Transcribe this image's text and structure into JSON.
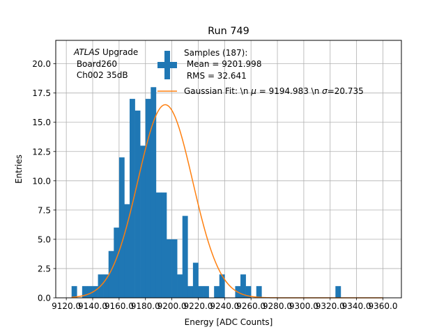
{
  "chart_data": {
    "type": "bar",
    "title": "Run 749",
    "xlabel": "Energy [ADC Counts]",
    "ylabel": "Entries",
    "xlim": [
      9112.0,
      9374.0
    ],
    "ylim": [
      0,
      22.0
    ],
    "grid": true,
    "x_ticks": [
      {
        "value": 9120,
        "label": "9120.0"
      },
      {
        "value": 9140,
        "label": "9140.0"
      },
      {
        "value": 9160,
        "label": "9160.0"
      },
      {
        "value": 9180,
        "label": "9180.0"
      },
      {
        "value": 9200,
        "label": "9200.0"
      },
      {
        "value": 9220,
        "label": "9220.0"
      },
      {
        "value": 9240,
        "label": "9240.0"
      },
      {
        "value": 9260,
        "label": "9260.0"
      },
      {
        "value": 9280,
        "label": "9280.0"
      },
      {
        "value": 9300,
        "label": "9300.0"
      },
      {
        "value": 9320,
        "label": "9320.0"
      },
      {
        "value": 9340,
        "label": "9340.0"
      },
      {
        "value": 9360,
        "label": "9360.0"
      }
    ],
    "y_ticks": [
      {
        "value": 0.0,
        "label": "0.0"
      },
      {
        "value": 2.5,
        "label": "2.5"
      },
      {
        "value": 5.0,
        "label": "5.0"
      },
      {
        "value": 7.5,
        "label": "7.5"
      },
      {
        "value": 10.0,
        "label": "10.0"
      },
      {
        "value": 12.5,
        "label": "12.5"
      },
      {
        "value": 15.0,
        "label": "15.0"
      },
      {
        "value": 17.5,
        "label": "17.5"
      },
      {
        "value": 20.0,
        "label": "20.0"
      }
    ],
    "histogram": {
      "name": "Samples (187):\n Mean = 9201.998\n RMS = 32.641",
      "color": "#1f77b4",
      "bin_start": 9124,
      "bin_width": 4,
      "counts": [
        1,
        0,
        1,
        1,
        1,
        2,
        2,
        4,
        6,
        12,
        8,
        17,
        16,
        13,
        17,
        18,
        9,
        9,
        5,
        5,
        2,
        7,
        1,
        3,
        1,
        1,
        0,
        1,
        2,
        0,
        0,
        1,
        2,
        1,
        0,
        1,
        0,
        0,
        0,
        0,
        0,
        0,
        0,
        0,
        0,
        0,
        0,
        0,
        0,
        0,
        1
      ]
    },
    "fit": {
      "name": "Gaussian Fit: \\n $\\mu$ = 9194.983 \\n $\\sigma$=20.735",
      "color": "#ff7f0e",
      "amplitude": 16.5,
      "mu": 9194.983,
      "sigma": 20.735,
      "x_range": [
        9124,
        9360
      ]
    },
    "annotation": {
      "experiment": "ATLAS",
      "experiment_suffix": " Upgrade",
      "line2": " Board260",
      "line3": " Ch002 35dB"
    },
    "legend": {
      "placement": "top-right",
      "hist_lines": [
        "Samples (187):",
        " Mean = 9201.998",
        " RMS = 32.641"
      ],
      "fit_label_prefix": "Gaussian Fit: \\n ",
      "mu_symbol": "μ",
      "mu_text": " = 9194.983 \\n ",
      "sigma_symbol": "σ",
      "sigma_text": "=20.735"
    }
  }
}
